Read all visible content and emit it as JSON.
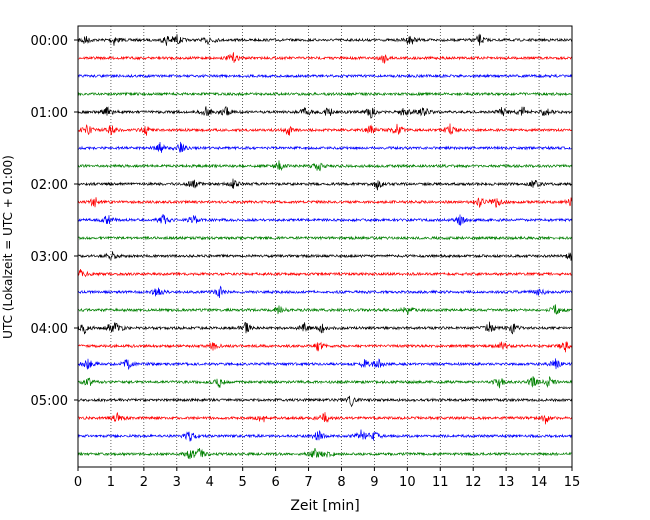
{
  "chart_data": {
    "type": "line",
    "title": "",
    "xlabel": "Zeit  [min]",
    "ylabel": "UTC (Lokalzeit = UTC + 01:00)",
    "xlim": [
      0,
      15
    ],
    "x_ticks": [
      "0",
      "1",
      "2",
      "3",
      "4",
      "5",
      "6",
      "7",
      "8",
      "9",
      "10",
      "11",
      "12",
      "13",
      "14",
      "15"
    ],
    "y_tick_labels": [
      "00:00",
      "01:00",
      "02:00",
      "03:00",
      "04:00",
      "05:00"
    ],
    "grid": "vertical dotted at each minute",
    "trace_interval_minutes": 15,
    "trace_colors": [
      "#000000",
      "#ff0000",
      "#0000ff",
      "#008000"
    ],
    "traces": [
      {
        "start": "00:00",
        "events": [
          0.2,
          1.1,
          2.7,
          3.0,
          4.0,
          10.1,
          12.2
        ]
      },
      {
        "start": "00:15",
        "events": [
          4.7,
          9.3
        ]
      },
      {
        "start": "00:30",
        "events": []
      },
      {
        "start": "00:45",
        "events": []
      },
      {
        "start": "01:00",
        "events": [
          0.9,
          3.9,
          4.5,
          6.9,
          7.6,
          8.9,
          9.9,
          10.5,
          12.9,
          13.5,
          14.2
        ]
      },
      {
        "start": "01:15",
        "events": [
          0.3,
          1.0,
          2.1,
          6.4,
          8.9,
          9.7,
          11.3
        ]
      },
      {
        "start": "01:30",
        "events": [
          2.5,
          3.1
        ]
      },
      {
        "start": "01:45",
        "events": [
          6.1,
          7.3
        ]
      },
      {
        "start": "02:00",
        "events": [
          3.5,
          4.7,
          9.1,
          13.9
        ]
      },
      {
        "start": "02:15",
        "events": [
          0.5,
          12.2,
          12.7,
          15.0
        ]
      },
      {
        "start": "02:30",
        "events": [
          0.9,
          2.6,
          3.5,
          11.6
        ]
      },
      {
        "start": "02:45",
        "events": []
      },
      {
        "start": "03:00",
        "events": [
          1.0,
          15.0
        ]
      },
      {
        "start": "03:15",
        "events": [
          0.1
        ]
      },
      {
        "start": "03:30",
        "events": [
          2.4,
          4.3,
          14.0
        ]
      },
      {
        "start": "03:45",
        "events": [
          6.1,
          10.0,
          14.5
        ]
      },
      {
        "start": "04:00",
        "events": [
          0.2,
          1.0,
          1.2,
          5.1,
          6.9,
          7.4,
          12.5,
          13.2
        ]
      },
      {
        "start": "04:15",
        "events": [
          4.1,
          7.3,
          12.9,
          14.8
        ]
      },
      {
        "start": "04:30",
        "events": [
          0.3,
          1.5,
          8.7,
          9.1,
          14.5
        ]
      },
      {
        "start": "04:45",
        "events": [
          0.3,
          4.3,
          12.8,
          13.8,
          14.3
        ]
      },
      {
        "start": "05:00",
        "events": [
          8.3
        ]
      },
      {
        "start": "05:15",
        "events": [
          1.2,
          5.6,
          7.5,
          14.2
        ]
      },
      {
        "start": "05:30",
        "events": [
          3.4,
          7.3,
          8.6,
          9.0
        ]
      },
      {
        "start": "05:45",
        "events": [
          3.4,
          3.7,
          7.2,
          7.6
        ]
      }
    ]
  }
}
